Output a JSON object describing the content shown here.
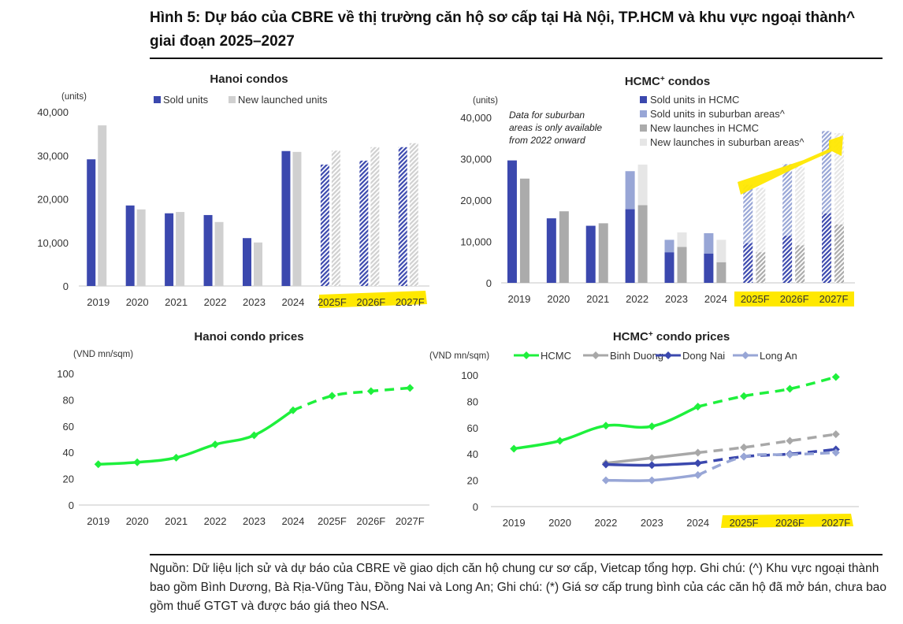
{
  "figure": {
    "title": "Hình 5: Dự báo của CBRE về thị trường căn hộ sơ cấp tại Hà Nội, TP.HCM và khu vực ngoại thành^ giai đoạn 2025–2027",
    "note": "Nguồn: Dữ liệu lịch sử và dự báo của CBRE về giao dịch căn hộ chung cư sơ cấp, Vietcap tổng hợp. Ghi chú: (^) Khu vực ngoại thành bao gồm Bình Dương, Bà Rịa-Vũng Tàu, Đồng Nai và Long An; Ghi chú: (*) Giá sơ cấp trung bình của các căn hộ đã mở bán, chưa bao gồm thuế GTGT và được báo giá theo NSA.",
    "highlight_color": "#FFE800"
  },
  "chart_data": [
    {
      "id": "hanoi_condos",
      "type": "bar",
      "title": "Hanoi condos",
      "ylabel": "(units)",
      "xlabel": "",
      "ylim": [
        0,
        40000
      ],
      "yticks": [
        "0",
        "10,000",
        "20,000",
        "30,000",
        "40,000"
      ],
      "ytick_values": [
        0,
        10000,
        20000,
        30000,
        40000
      ],
      "categories": [
        "2019",
        "2020",
        "2021",
        "2022",
        "2023",
        "2024",
        "2025F",
        "2026F",
        "2027F"
      ],
      "forecast_categories": [
        "2025F",
        "2026F",
        "2027F"
      ],
      "legend_position": "top",
      "grid": false,
      "series": [
        {
          "name": "Sold units",
          "color": "#3B48AE",
          "values": [
            29100,
            18500,
            16700,
            16300,
            11000,
            31000,
            27900,
            28800,
            31900
          ]
        },
        {
          "name": "New launched units",
          "color": "#D0D0D0",
          "values": [
            36900,
            17600,
            17000,
            14700,
            10000,
            30800,
            31100,
            31900,
            32800
          ]
        }
      ]
    },
    {
      "id": "hcmc_condos",
      "type": "bar",
      "stacked": true,
      "title": "HCMC",
      "title_sup": "+",
      "title_suffix": " condos",
      "ylabel": "(units)",
      "xlabel": "",
      "ylim": [
        0,
        40000
      ],
      "yticks": [
        "0",
        "10,000",
        "20,000",
        "30,000",
        "40,000"
      ],
      "ytick_values": [
        0,
        10000,
        20000,
        30000,
        40000
      ],
      "categories": [
        "2019",
        "2020",
        "2021",
        "2022",
        "2023",
        "2024",
        "2025F",
        "2026F",
        "2027F"
      ],
      "forecast_categories": [
        "2025F",
        "2026F",
        "2027F"
      ],
      "annotation": [
        "Data for suburban",
        "areas is only available",
        "from 2022 onward"
      ],
      "legend_position": "top-right",
      "grid": false,
      "series": [
        {
          "name": "Sold units in HCMC",
          "stack": "sold",
          "color": "#3B48AE",
          "values": [
            29600,
            15600,
            13800,
            17800,
            7400,
            7100,
            9600,
            11400,
            16800
          ]
        },
        {
          "name": "Sold units in suburban areas^",
          "stack": "sold",
          "color": "#98A6D6",
          "values": [
            0,
            0,
            0,
            9200,
            3000,
            4900,
            14100,
            17300,
            19900
          ]
        },
        {
          "name": "New launches in HCMC",
          "stack": "new",
          "color": "#ABABAB",
          "values": [
            25200,
            17300,
            14400,
            18800,
            8700,
            5000,
            7400,
            9100,
            14100
          ]
        },
        {
          "name": "New launches in suburban areas^",
          "stack": "new",
          "color": "#E6E6E6",
          "values": [
            0,
            0,
            0,
            9800,
            3500,
            5400,
            15600,
            19000,
            22100
          ]
        }
      ]
    },
    {
      "id": "hanoi_prices",
      "type": "line",
      "title": "Hanoi condo prices",
      "ylabel": "(VND mn/sqm)",
      "xlabel": "",
      "ylim": [
        0,
        100
      ],
      "yticks": [
        "0",
        "20",
        "40",
        "60",
        "80",
        "100"
      ],
      "ytick_values": [
        0,
        20,
        40,
        60,
        80,
        100
      ],
      "categories": [
        "2019",
        "2020",
        "2021",
        "2022",
        "2023",
        "2024",
        "2025F",
        "2026F",
        "2027F"
      ],
      "forecast_from_index": 5,
      "grid": false,
      "series": [
        {
          "name": "Hanoi",
          "color": "#1EF03C",
          "values": [
            31,
            32.5,
            36,
            46,
            53,
            72,
            83,
            86.5,
            89
          ]
        }
      ]
    },
    {
      "id": "hcmc_prices",
      "type": "line",
      "title": "HCMC",
      "title_sup": "+",
      "title_suffix": " condo prices",
      "ylabel": "(VND mn/sqm)",
      "xlabel": "",
      "ylim": [
        0,
        100
      ],
      "yticks": [
        "0",
        "20",
        "40",
        "60",
        "80",
        "100"
      ],
      "ytick_values": [
        0,
        20,
        40,
        60,
        80,
        100
      ],
      "categories": [
        "2019",
        "2020",
        "2022",
        "2023",
        "2024",
        "2025F",
        "2026F",
        "2027F"
      ],
      "forecast_categories": [
        "2025F",
        "2026F",
        "2027F"
      ],
      "forecast_from_index": 4,
      "legend_position": "top",
      "grid": false,
      "series": [
        {
          "name": "HCMC",
          "color": "#1EF03C",
          "values": [
            44,
            50,
            61.5,
            61,
            76,
            84,
            89.5,
            98.5
          ]
        },
        {
          "name": "Binh Duong",
          "color": "#A8A8A8",
          "values": [
            null,
            null,
            33,
            37,
            41,
            45,
            50,
            55
          ]
        },
        {
          "name": "Dong Nai",
          "color": "#3B48AE",
          "values": [
            null,
            null,
            32,
            31.5,
            33,
            38,
            40,
            43.5
          ]
        },
        {
          "name": "Long An",
          "color": "#98A6D6",
          "values": [
            null,
            null,
            20,
            20,
            24,
            38,
            39.5,
            41
          ]
        }
      ]
    }
  ]
}
